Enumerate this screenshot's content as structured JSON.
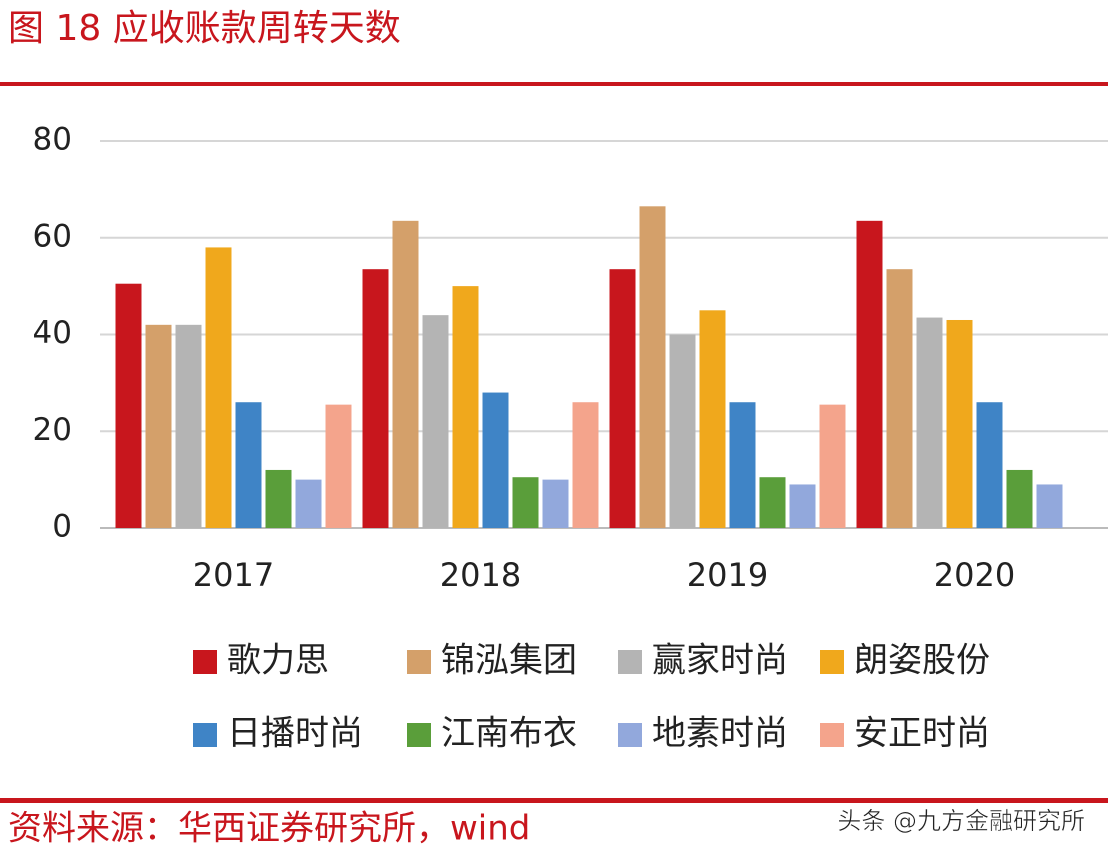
{
  "chart_data": {
    "type": "bar",
    "title": "图 18 应收账款周转天数",
    "categories": [
      "2017",
      "2018",
      "2019",
      "2020"
    ],
    "series": [
      {
        "name": "歌力思",
        "color": "#c8161d",
        "values": [
          50.5,
          53.5,
          53.5,
          63.5
        ]
      },
      {
        "name": "锦泓集团",
        "color": "#d4a06a",
        "values": [
          42,
          63.5,
          66.5,
          53.5
        ]
      },
      {
        "name": "赢家时尚",
        "color": "#b4b4b4",
        "values": [
          42,
          44,
          40,
          43.5
        ]
      },
      {
        "name": "朗姿股份",
        "color": "#f0a81c",
        "values": [
          58,
          50,
          45,
          43
        ]
      },
      {
        "name": "日播时尚",
        "color": "#3f84c6",
        "values": [
          26,
          28,
          26,
          26
        ]
      },
      {
        "name": "江南布衣",
        "color": "#5a9e3a",
        "values": [
          12,
          10.5,
          10.5,
          12
        ]
      },
      {
        "name": "地素时尚",
        "color": "#92a8dc",
        "values": [
          10,
          10,
          9,
          9
        ]
      },
      {
        "name": "安正时尚",
        "color": "#f4a48c",
        "values": [
          25.5,
          26,
          25.5,
          null
        ]
      }
    ],
    "ylim": [
      0,
      80
    ],
    "yticks": [
      0,
      20,
      40,
      60,
      80
    ],
    "grid": true,
    "source": "资料来源：华西证券研究所，wind",
    "watermark": "头条 @九方金融研究所"
  }
}
